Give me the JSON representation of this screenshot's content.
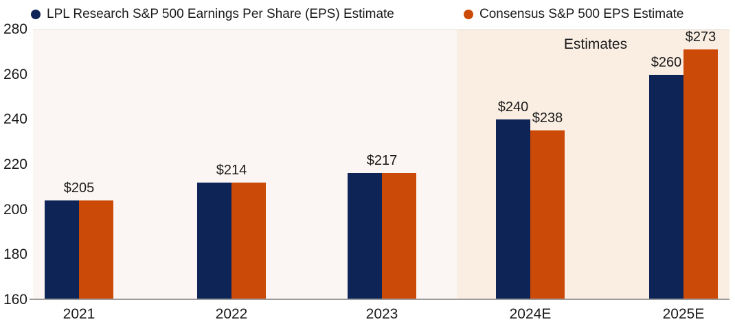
{
  "legend": {
    "items": [
      {
        "id": "lpl",
        "label": "LPL Research S&P 500 Earnings Per Share (EPS) Estimate",
        "color": "#0f2456"
      },
      {
        "id": "consensus",
        "label": "Consensus S&P 500 EPS Estimate",
        "color": "#cc4a08"
      }
    ]
  },
  "chart_data": {
    "type": "bar",
    "title": "",
    "categories": [
      "2021",
      "2022",
      "2023",
      "2024E",
      "2025E"
    ],
    "series": [
      {
        "name": "LPL Research S&P 500 Earnings Per Share (EPS) Estimate",
        "color": "#0f2456",
        "values": [
          205,
          214,
          217,
          240,
          260
        ],
        "drawn_values": [
          204.3,
          212.0,
          216.2,
          240.0,
          260.0
        ]
      },
      {
        "name": "Consensus S&P 500 EPS Estimate",
        "color": "#cc4a08",
        "values": [
          205,
          214,
          217,
          238,
          273
        ],
        "drawn_values": [
          204.3,
          212.0,
          216.2,
          235.3,
          271.3
        ]
      }
    ],
    "value_labels": [
      {
        "category": "2021",
        "text": "$205",
        "anchor": "pair"
      },
      {
        "category": "2022",
        "text": "$214",
        "anchor": "pair"
      },
      {
        "category": "2023",
        "text": "$217",
        "anchor": "pair"
      },
      {
        "category": "2024E",
        "text": "$240",
        "anchor": "bar",
        "series": 0
      },
      {
        "category": "2024E",
        "text": "$238",
        "anchor": "bar",
        "series": 1
      },
      {
        "category": "2025E",
        "text": "$260",
        "anchor": "bar",
        "series": 0
      },
      {
        "category": "2025E",
        "text": "$273",
        "anchor": "bar",
        "series": 1
      }
    ],
    "ylim": [
      160,
      280
    ],
    "yticks": [
      280,
      260,
      240,
      220,
      200,
      180,
      160
    ],
    "grid": false,
    "legend_position": "top",
    "estimates_region": {
      "label": "Estimates",
      "categories": [
        "2024E",
        "2025E"
      ]
    },
    "colors": {
      "historical_bg": "#fbf6f3",
      "estimates_bg": "#faeee3",
      "axis_line": "#9b9b9b",
      "text": "#1a1a1a"
    }
  }
}
